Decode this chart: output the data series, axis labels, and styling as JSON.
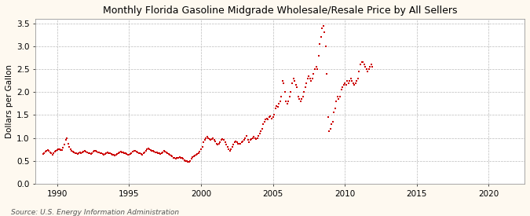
{
  "title": "Monthly Florida Gasoline Midgrade Wholesale/Resale Price by All Sellers",
  "ylabel": "Dollars per Gallon",
  "source": "Source: U.S. Energy Information Administration",
  "bg_color": "#fef9f0",
  "plot_bg_color": "#ffffff",
  "line_color": "#cc0000",
  "marker": "s",
  "markersize": 2.0,
  "xlim": [
    1988.5,
    2022.5
  ],
  "ylim": [
    0.0,
    3.6
  ],
  "yticks": [
    0.0,
    0.5,
    1.0,
    1.5,
    2.0,
    2.5,
    3.0,
    3.5
  ],
  "xticks": [
    1990,
    1995,
    2000,
    2005,
    2010,
    2015,
    2020
  ],
  "data": [
    [
      1989.0,
      0.65
    ],
    [
      1989.083,
      0.67
    ],
    [
      1989.167,
      0.7
    ],
    [
      1989.25,
      0.72
    ],
    [
      1989.333,
      0.73
    ],
    [
      1989.417,
      0.71
    ],
    [
      1989.5,
      0.68
    ],
    [
      1989.583,
      0.66
    ],
    [
      1989.667,
      0.64
    ],
    [
      1989.75,
      0.67
    ],
    [
      1989.833,
      0.7
    ],
    [
      1989.917,
      0.72
    ],
    [
      1990.0,
      0.74
    ],
    [
      1990.083,
      0.76
    ],
    [
      1990.167,
      0.75
    ],
    [
      1990.25,
      0.73
    ],
    [
      1990.333,
      0.74
    ],
    [
      1990.417,
      0.78
    ],
    [
      1990.5,
      0.85
    ],
    [
      1990.583,
      0.95
    ],
    [
      1990.667,
      1.0
    ],
    [
      1990.75,
      0.88
    ],
    [
      1990.833,
      0.8
    ],
    [
      1990.917,
      0.75
    ],
    [
      1991.0,
      0.72
    ],
    [
      1991.083,
      0.7
    ],
    [
      1991.167,
      0.68
    ],
    [
      1991.25,
      0.67
    ],
    [
      1991.333,
      0.66
    ],
    [
      1991.417,
      0.65
    ],
    [
      1991.5,
      0.67
    ],
    [
      1991.583,
      0.68
    ],
    [
      1991.667,
      0.67
    ],
    [
      1991.75,
      0.68
    ],
    [
      1991.833,
      0.7
    ],
    [
      1991.917,
      0.72
    ],
    [
      1992.0,
      0.7
    ],
    [
      1992.083,
      0.68
    ],
    [
      1992.167,
      0.67
    ],
    [
      1992.25,
      0.66
    ],
    [
      1992.333,
      0.65
    ],
    [
      1992.417,
      0.67
    ],
    [
      1992.5,
      0.7
    ],
    [
      1992.583,
      0.72
    ],
    [
      1992.667,
      0.71
    ],
    [
      1992.75,
      0.7
    ],
    [
      1992.833,
      0.69
    ],
    [
      1992.917,
      0.68
    ],
    [
      1993.0,
      0.67
    ],
    [
      1993.083,
      0.66
    ],
    [
      1993.167,
      0.65
    ],
    [
      1993.25,
      0.64
    ],
    [
      1993.333,
      0.65
    ],
    [
      1993.417,
      0.67
    ],
    [
      1993.5,
      0.68
    ],
    [
      1993.583,
      0.67
    ],
    [
      1993.667,
      0.66
    ],
    [
      1993.75,
      0.65
    ],
    [
      1993.833,
      0.64
    ],
    [
      1993.917,
      0.63
    ],
    [
      1994.0,
      0.62
    ],
    [
      1994.083,
      0.63
    ],
    [
      1994.167,
      0.65
    ],
    [
      1994.25,
      0.67
    ],
    [
      1994.333,
      0.68
    ],
    [
      1994.417,
      0.7
    ],
    [
      1994.5,
      0.69
    ],
    [
      1994.583,
      0.68
    ],
    [
      1994.667,
      0.67
    ],
    [
      1994.75,
      0.66
    ],
    [
      1994.833,
      0.65
    ],
    [
      1994.917,
      0.64
    ],
    [
      1995.0,
      0.63
    ],
    [
      1995.083,
      0.65
    ],
    [
      1995.167,
      0.67
    ],
    [
      1995.25,
      0.7
    ],
    [
      1995.333,
      0.72
    ],
    [
      1995.417,
      0.71
    ],
    [
      1995.5,
      0.7
    ],
    [
      1995.583,
      0.68
    ],
    [
      1995.667,
      0.67
    ],
    [
      1995.75,
      0.66
    ],
    [
      1995.833,
      0.65
    ],
    [
      1995.917,
      0.64
    ],
    [
      1996.0,
      0.66
    ],
    [
      1996.083,
      0.68
    ],
    [
      1996.167,
      0.72
    ],
    [
      1996.25,
      0.75
    ],
    [
      1996.333,
      0.77
    ],
    [
      1996.417,
      0.76
    ],
    [
      1996.5,
      0.73
    ],
    [
      1996.583,
      0.72
    ],
    [
      1996.667,
      0.71
    ],
    [
      1996.75,
      0.7
    ],
    [
      1996.833,
      0.69
    ],
    [
      1996.917,
      0.68
    ],
    [
      1997.0,
      0.67
    ],
    [
      1997.083,
      0.66
    ],
    [
      1997.167,
      0.65
    ],
    [
      1997.25,
      0.67
    ],
    [
      1997.333,
      0.69
    ],
    [
      1997.417,
      0.71
    ],
    [
      1997.5,
      0.7
    ],
    [
      1997.583,
      0.68
    ],
    [
      1997.667,
      0.67
    ],
    [
      1997.75,
      0.65
    ],
    [
      1997.833,
      0.63
    ],
    [
      1997.917,
      0.61
    ],
    [
      1998.0,
      0.59
    ],
    [
      1998.083,
      0.57
    ],
    [
      1998.167,
      0.56
    ],
    [
      1998.25,
      0.55
    ],
    [
      1998.333,
      0.56
    ],
    [
      1998.417,
      0.57
    ],
    [
      1998.5,
      0.58
    ],
    [
      1998.583,
      0.57
    ],
    [
      1998.667,
      0.56
    ],
    [
      1998.75,
      0.54
    ],
    [
      1998.833,
      0.52
    ],
    [
      1998.917,
      0.5
    ],
    [
      1999.0,
      0.49
    ],
    [
      1999.083,
      0.48
    ],
    [
      1999.167,
      0.47
    ],
    [
      1999.25,
      0.5
    ],
    [
      1999.333,
      0.55
    ],
    [
      1999.417,
      0.58
    ],
    [
      1999.5,
      0.6
    ],
    [
      1999.583,
      0.62
    ],
    [
      1999.667,
      0.63
    ],
    [
      1999.75,
      0.65
    ],
    [
      1999.833,
      0.67
    ],
    [
      1999.917,
      0.7
    ],
    [
      2000.0,
      0.75
    ],
    [
      2000.083,
      0.8
    ],
    [
      2000.167,
      0.9
    ],
    [
      2000.25,
      0.95
    ],
    [
      2000.333,
      1.0
    ],
    [
      2000.417,
      1.02
    ],
    [
      2000.5,
      1.0
    ],
    [
      2000.583,
      0.98
    ],
    [
      2000.667,
      0.96
    ],
    [
      2000.75,
      0.97
    ],
    [
      2000.833,
      1.0
    ],
    [
      2000.917,
      0.96
    ],
    [
      2001.0,
      0.92
    ],
    [
      2001.083,
      0.88
    ],
    [
      2001.167,
      0.85
    ],
    [
      2001.25,
      0.87
    ],
    [
      2001.333,
      0.9
    ],
    [
      2001.417,
      0.95
    ],
    [
      2001.5,
      0.97
    ],
    [
      2001.583,
      0.95
    ],
    [
      2001.667,
      0.9
    ],
    [
      2001.75,
      0.85
    ],
    [
      2001.833,
      0.8
    ],
    [
      2001.917,
      0.75
    ],
    [
      2002.0,
      0.72
    ],
    [
      2002.083,
      0.75
    ],
    [
      2002.167,
      0.8
    ],
    [
      2002.25,
      0.85
    ],
    [
      2002.333,
      0.9
    ],
    [
      2002.417,
      0.92
    ],
    [
      2002.5,
      0.9
    ],
    [
      2002.583,
      0.88
    ],
    [
      2002.667,
      0.87
    ],
    [
      2002.75,
      0.88
    ],
    [
      2002.833,
      0.9
    ],
    [
      2002.917,
      0.92
    ],
    [
      2003.0,
      0.95
    ],
    [
      2003.083,
      1.0
    ],
    [
      2003.167,
      1.05
    ],
    [
      2003.25,
      0.95
    ],
    [
      2003.333,
      0.9
    ],
    [
      2003.417,
      0.95
    ],
    [
      2003.5,
      0.98
    ],
    [
      2003.583,
      1.0
    ],
    [
      2003.667,
      1.02
    ],
    [
      2003.75,
      1.0
    ],
    [
      2003.833,
      0.98
    ],
    [
      2003.917,
      1.0
    ],
    [
      2004.0,
      1.05
    ],
    [
      2004.083,
      1.1
    ],
    [
      2004.167,
      1.15
    ],
    [
      2004.25,
      1.2
    ],
    [
      2004.333,
      1.3
    ],
    [
      2004.417,
      1.35
    ],
    [
      2004.5,
      1.4
    ],
    [
      2004.583,
      1.42
    ],
    [
      2004.667,
      1.4
    ],
    [
      2004.75,
      1.45
    ],
    [
      2004.833,
      1.48
    ],
    [
      2004.917,
      1.42
    ],
    [
      2005.0,
      1.45
    ],
    [
      2005.083,
      1.5
    ],
    [
      2005.167,
      1.65
    ],
    [
      2005.25,
      1.7
    ],
    [
      2005.333,
      1.68
    ],
    [
      2005.417,
      1.75
    ],
    [
      2005.5,
      1.8
    ],
    [
      2005.583,
      1.9
    ],
    [
      2005.667,
      2.25
    ],
    [
      2005.75,
      2.2
    ],
    [
      2005.833,
      2.0
    ],
    [
      2005.917,
      1.8
    ],
    [
      2006.0,
      1.75
    ],
    [
      2006.083,
      1.8
    ],
    [
      2006.167,
      1.9
    ],
    [
      2006.25,
      2.0
    ],
    [
      2006.333,
      2.2
    ],
    [
      2006.417,
      2.3
    ],
    [
      2006.5,
      2.25
    ],
    [
      2006.583,
      2.15
    ],
    [
      2006.667,
      2.1
    ],
    [
      2006.75,
      1.9
    ],
    [
      2006.833,
      1.85
    ],
    [
      2006.917,
      1.8
    ],
    [
      2007.0,
      1.85
    ],
    [
      2007.083,
      1.9
    ],
    [
      2007.167,
      2.0
    ],
    [
      2007.25,
      2.1
    ],
    [
      2007.333,
      2.2
    ],
    [
      2007.417,
      2.3
    ],
    [
      2007.5,
      2.35
    ],
    [
      2007.583,
      2.3
    ],
    [
      2007.667,
      2.25
    ],
    [
      2007.75,
      2.3
    ],
    [
      2007.833,
      2.4
    ],
    [
      2007.917,
      2.5
    ],
    [
      2008.0,
      2.55
    ],
    [
      2008.083,
      2.5
    ],
    [
      2008.167,
      2.8
    ],
    [
      2008.25,
      3.05
    ],
    [
      2008.333,
      3.2
    ],
    [
      2008.417,
      3.4
    ],
    [
      2008.5,
      3.45
    ],
    [
      2008.583,
      3.3
    ],
    [
      2008.667,
      3.0
    ],
    [
      2008.75,
      2.4
    ],
    [
      2008.833,
      1.45
    ],
    [
      2008.917,
      1.15
    ],
    [
      2009.0,
      1.2
    ],
    [
      2009.083,
      1.3
    ],
    [
      2009.167,
      1.35
    ],
    [
      2009.25,
      1.55
    ],
    [
      2009.333,
      1.65
    ],
    [
      2009.417,
      1.8
    ],
    [
      2009.5,
      1.9
    ],
    [
      2009.583,
      1.85
    ],
    [
      2009.667,
      1.9
    ],
    [
      2009.75,
      2.05
    ],
    [
      2009.833,
      2.1
    ],
    [
      2009.917,
      2.15
    ],
    [
      2010.0,
      2.2
    ],
    [
      2010.083,
      2.15
    ],
    [
      2010.167,
      2.25
    ],
    [
      2010.25,
      2.2
    ],
    [
      2010.333,
      2.25
    ],
    [
      2010.417,
      2.3
    ],
    [
      2010.5,
      2.25
    ],
    [
      2010.583,
      2.2
    ],
    [
      2010.667,
      2.15
    ],
    [
      2010.75,
      2.2
    ],
    [
      2010.833,
      2.25
    ],
    [
      2010.917,
      2.3
    ],
    [
      2011.0,
      2.45
    ],
    [
      2011.083,
      2.6
    ],
    [
      2011.167,
      2.65
    ],
    [
      2011.25,
      2.65
    ],
    [
      2011.333,
      2.6
    ],
    [
      2011.417,
      2.55
    ],
    [
      2011.5,
      2.5
    ],
    [
      2011.583,
      2.45
    ],
    [
      2011.667,
      2.5
    ],
    [
      2011.75,
      2.55
    ],
    [
      2011.833,
      2.6
    ],
    [
      2011.917,
      2.55
    ]
  ]
}
